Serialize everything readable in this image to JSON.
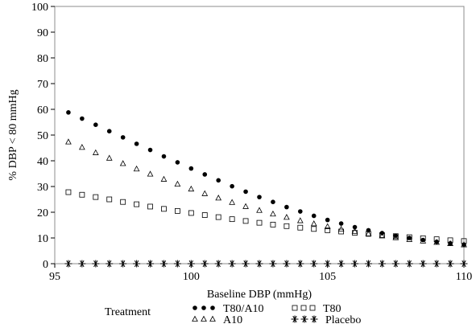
{
  "chart_data": {
    "type": "scatter",
    "title": "",
    "xlabel": "Baseline DBP (mmHg)",
    "ylabel": "% DBP < 80 mmHg",
    "xlim": [
      95,
      110
    ],
    "ylim": [
      0,
      100
    ],
    "xticks": [
      95,
      100,
      105,
      110
    ],
    "yticks": [
      0,
      10,
      20,
      30,
      40,
      50,
      60,
      70,
      80,
      90,
      100
    ],
    "grid": false,
    "legend": {
      "placement": "bottom",
      "title": "Treatment"
    },
    "x": [
      95.5,
      96.0,
      96.5,
      97.0,
      97.5,
      98.0,
      98.5,
      99.0,
      99.5,
      100.0,
      100.5,
      101.0,
      101.5,
      102.0,
      102.5,
      103.0,
      103.5,
      104.0,
      104.5,
      105.0,
      105.5,
      106.0,
      106.5,
      107.0,
      107.5,
      108.0,
      108.5,
      109.0,
      109.5,
      110.0
    ],
    "series": [
      {
        "name": "T80/A10",
        "marker": "filled-circle",
        "color": "#000000",
        "values": [
          58.8,
          56.4,
          54.0,
          51.5,
          49.1,
          46.6,
          44.2,
          41.7,
          39.4,
          37.0,
          34.7,
          32.4,
          30.1,
          28.0,
          25.9,
          24.0,
          22.0,
          20.3,
          18.6,
          17.0,
          15.6,
          14.2,
          13.0,
          11.9,
          10.9,
          10.0,
          9.2,
          8.5,
          7.9,
          7.4
        ]
      },
      {
        "name": "T80",
        "marker": "open-square",
        "color": "#000000",
        "values": [
          27.8,
          26.8,
          25.9,
          25.0,
          24.0,
          23.1,
          22.2,
          21.3,
          20.5,
          19.7,
          18.9,
          18.1,
          17.3,
          16.6,
          15.9,
          15.2,
          14.6,
          14.0,
          13.5,
          13.0,
          12.5,
          12.0,
          11.6,
          11.1,
          10.7,
          10.3,
          9.9,
          9.5,
          9.1,
          8.8
        ]
      },
      {
        "name": "A10",
        "marker": "open-triangle",
        "color": "#000000",
        "values": [
          47.3,
          45.2,
          43.1,
          41.0,
          38.9,
          36.8,
          34.8,
          32.8,
          30.9,
          29.0,
          27.2,
          25.5,
          23.8,
          22.2,
          20.7,
          19.3,
          18.0,
          16.7,
          15.5,
          14.4,
          13.4,
          12.5,
          11.6,
          10.8,
          10.1,
          9.4,
          8.8,
          8.3,
          7.8,
          7.3
        ]
      },
      {
        "name": "Placebo",
        "marker": "asterisk",
        "color": "#000000",
        "values": [
          0,
          0,
          0,
          0,
          0,
          0,
          0,
          0,
          0,
          0,
          0,
          0,
          0,
          0,
          0,
          0,
          0,
          0,
          0,
          0,
          0,
          0,
          0,
          0,
          0,
          0,
          0,
          0,
          0,
          0
        ]
      }
    ]
  }
}
